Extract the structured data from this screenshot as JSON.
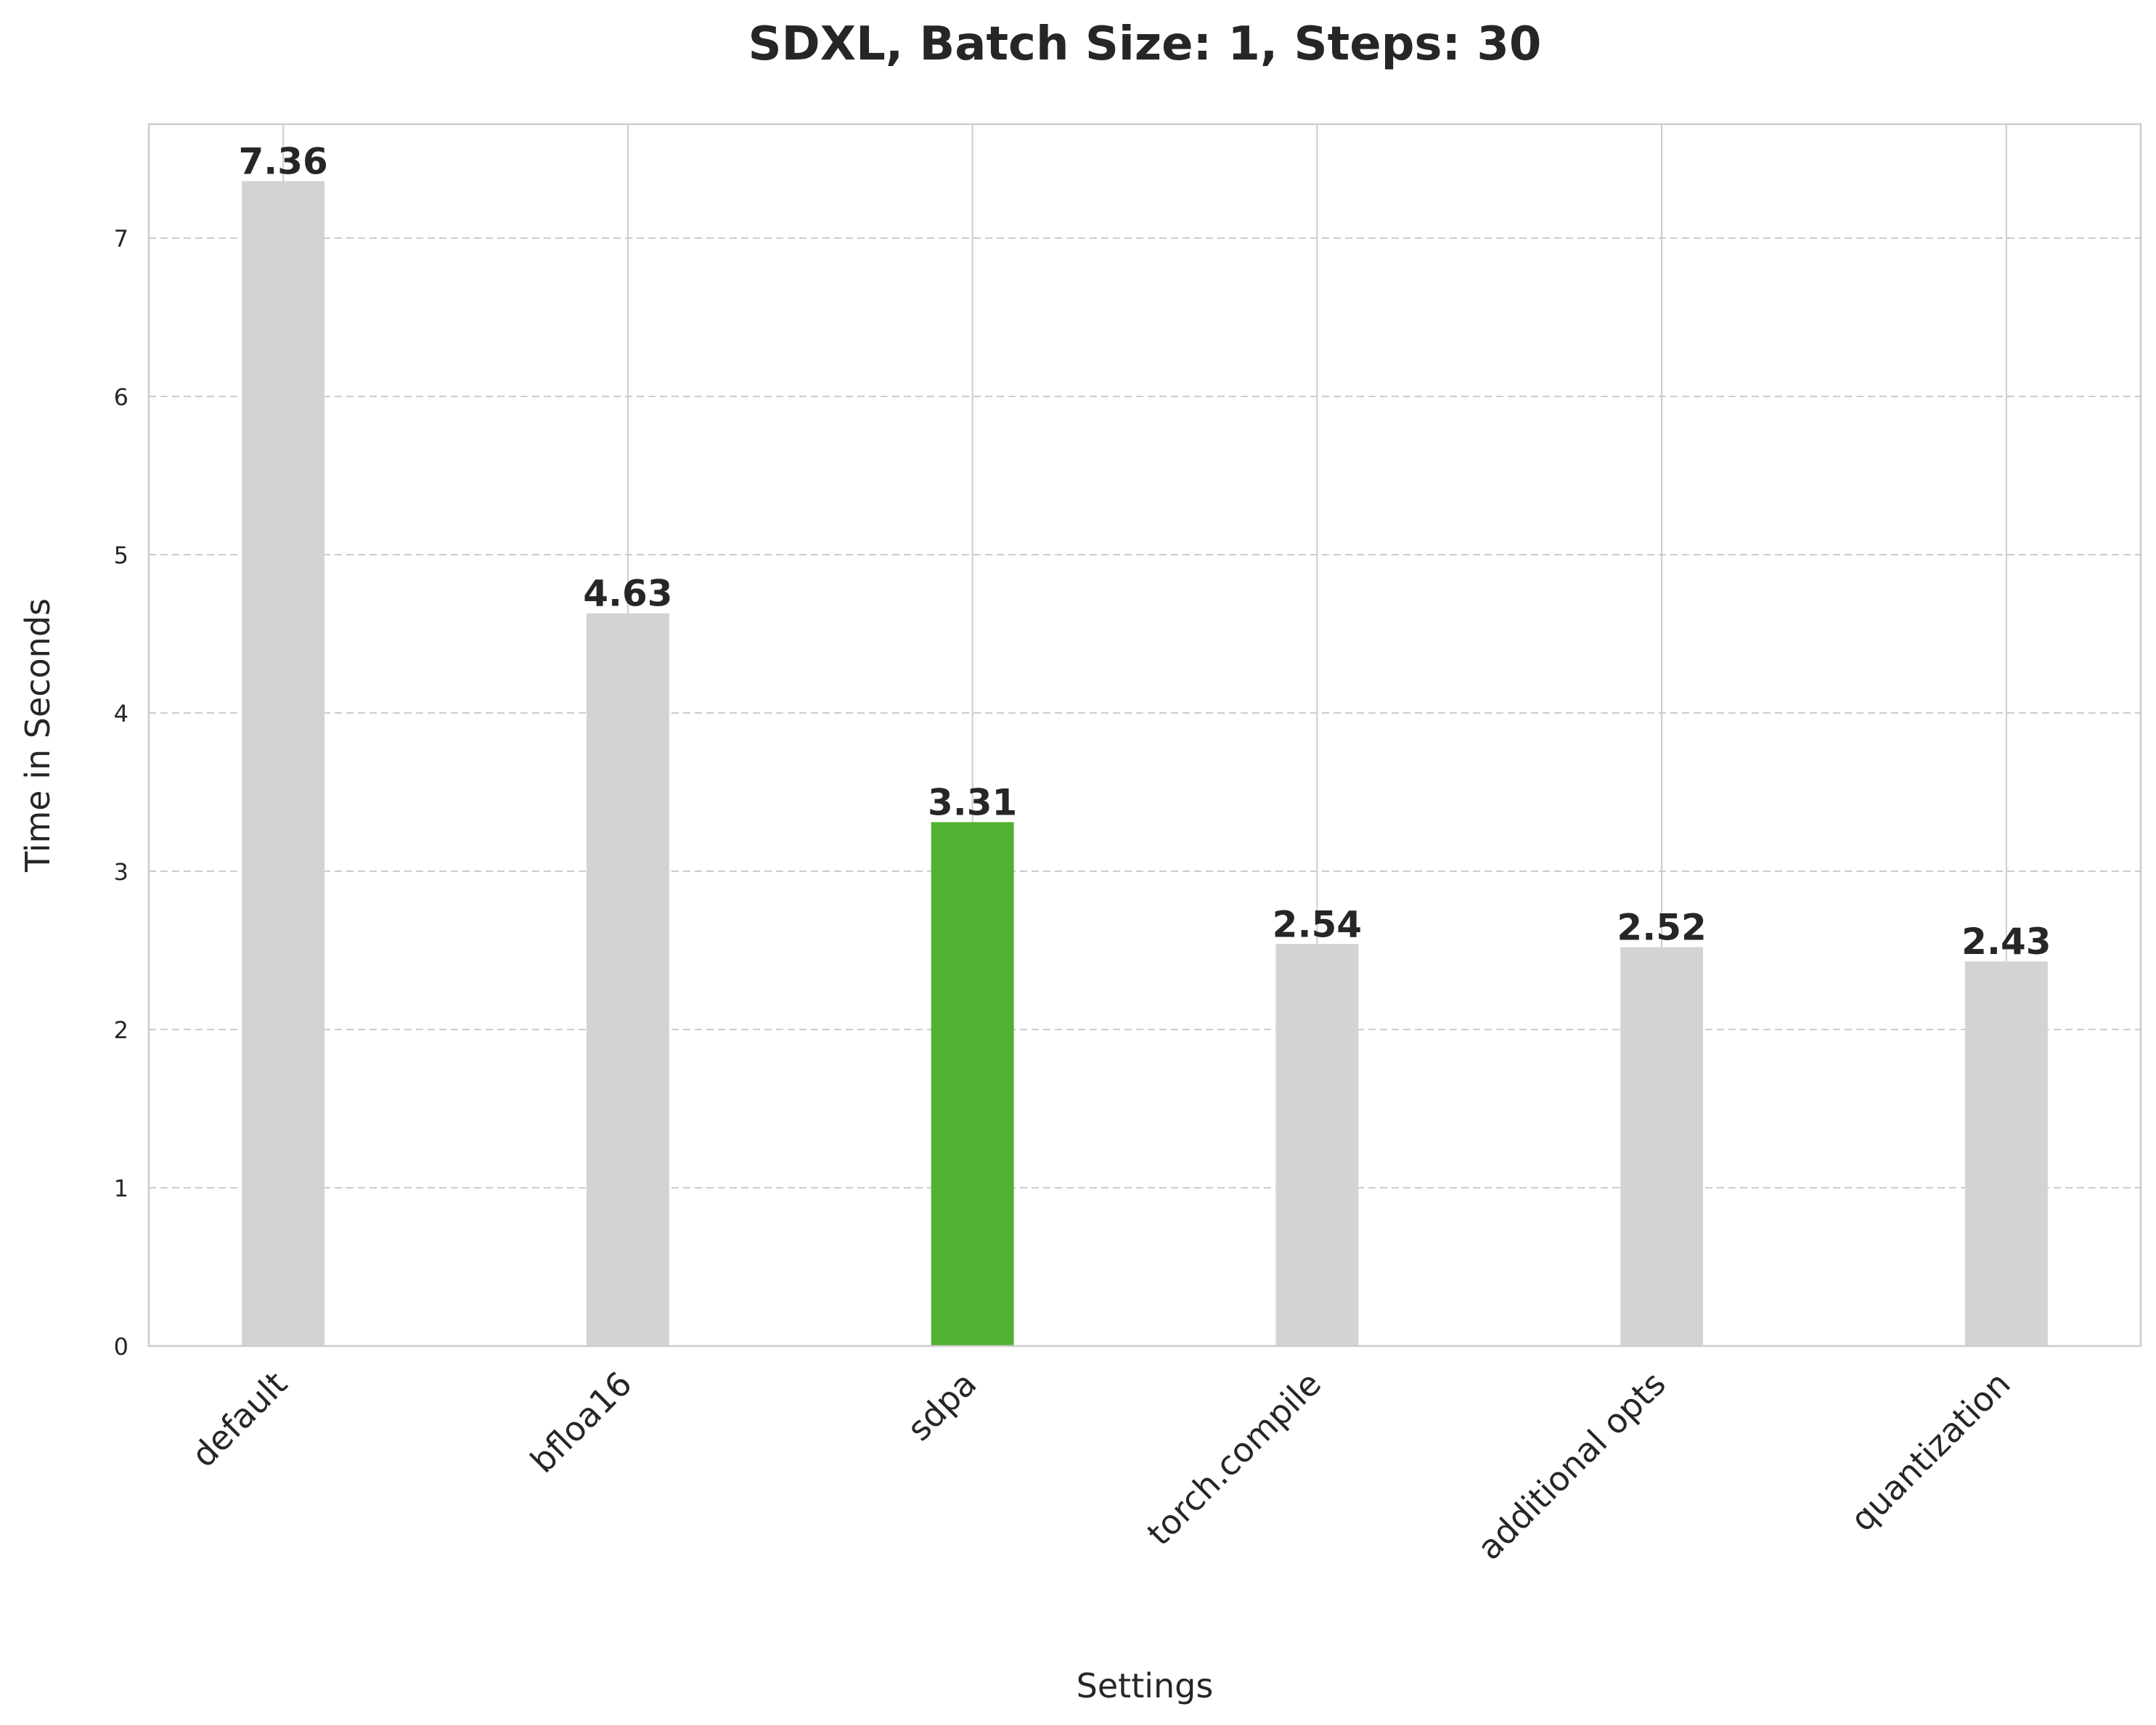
{
  "chart_data": {
    "type": "bar",
    "title": "SDXL, Batch Size: 1, Steps: 30",
    "xlabel": "Settings",
    "ylabel": "Time in Seconds",
    "categories": [
      "default",
      "bfloa16",
      "sdpa",
      "torch.compile",
      "additional opts",
      "quantization"
    ],
    "values": [
      7.36,
      4.63,
      3.31,
      2.54,
      2.52,
      2.43
    ],
    "data_labels": [
      "7.36",
      "4.63",
      "3.31",
      "2.54",
      "2.52",
      "2.43"
    ],
    "ylim": [
      0,
      7.72
    ],
    "yticks": [
      0,
      1,
      2,
      3,
      4,
      5,
      6,
      7
    ],
    "grid": true,
    "colors": {
      "default_bar": "#d3d3d3",
      "highlight_bar": "#52b132",
      "highlight_category": "sdpa",
      "text": "#262626",
      "grid": "#cccccc"
    }
  }
}
